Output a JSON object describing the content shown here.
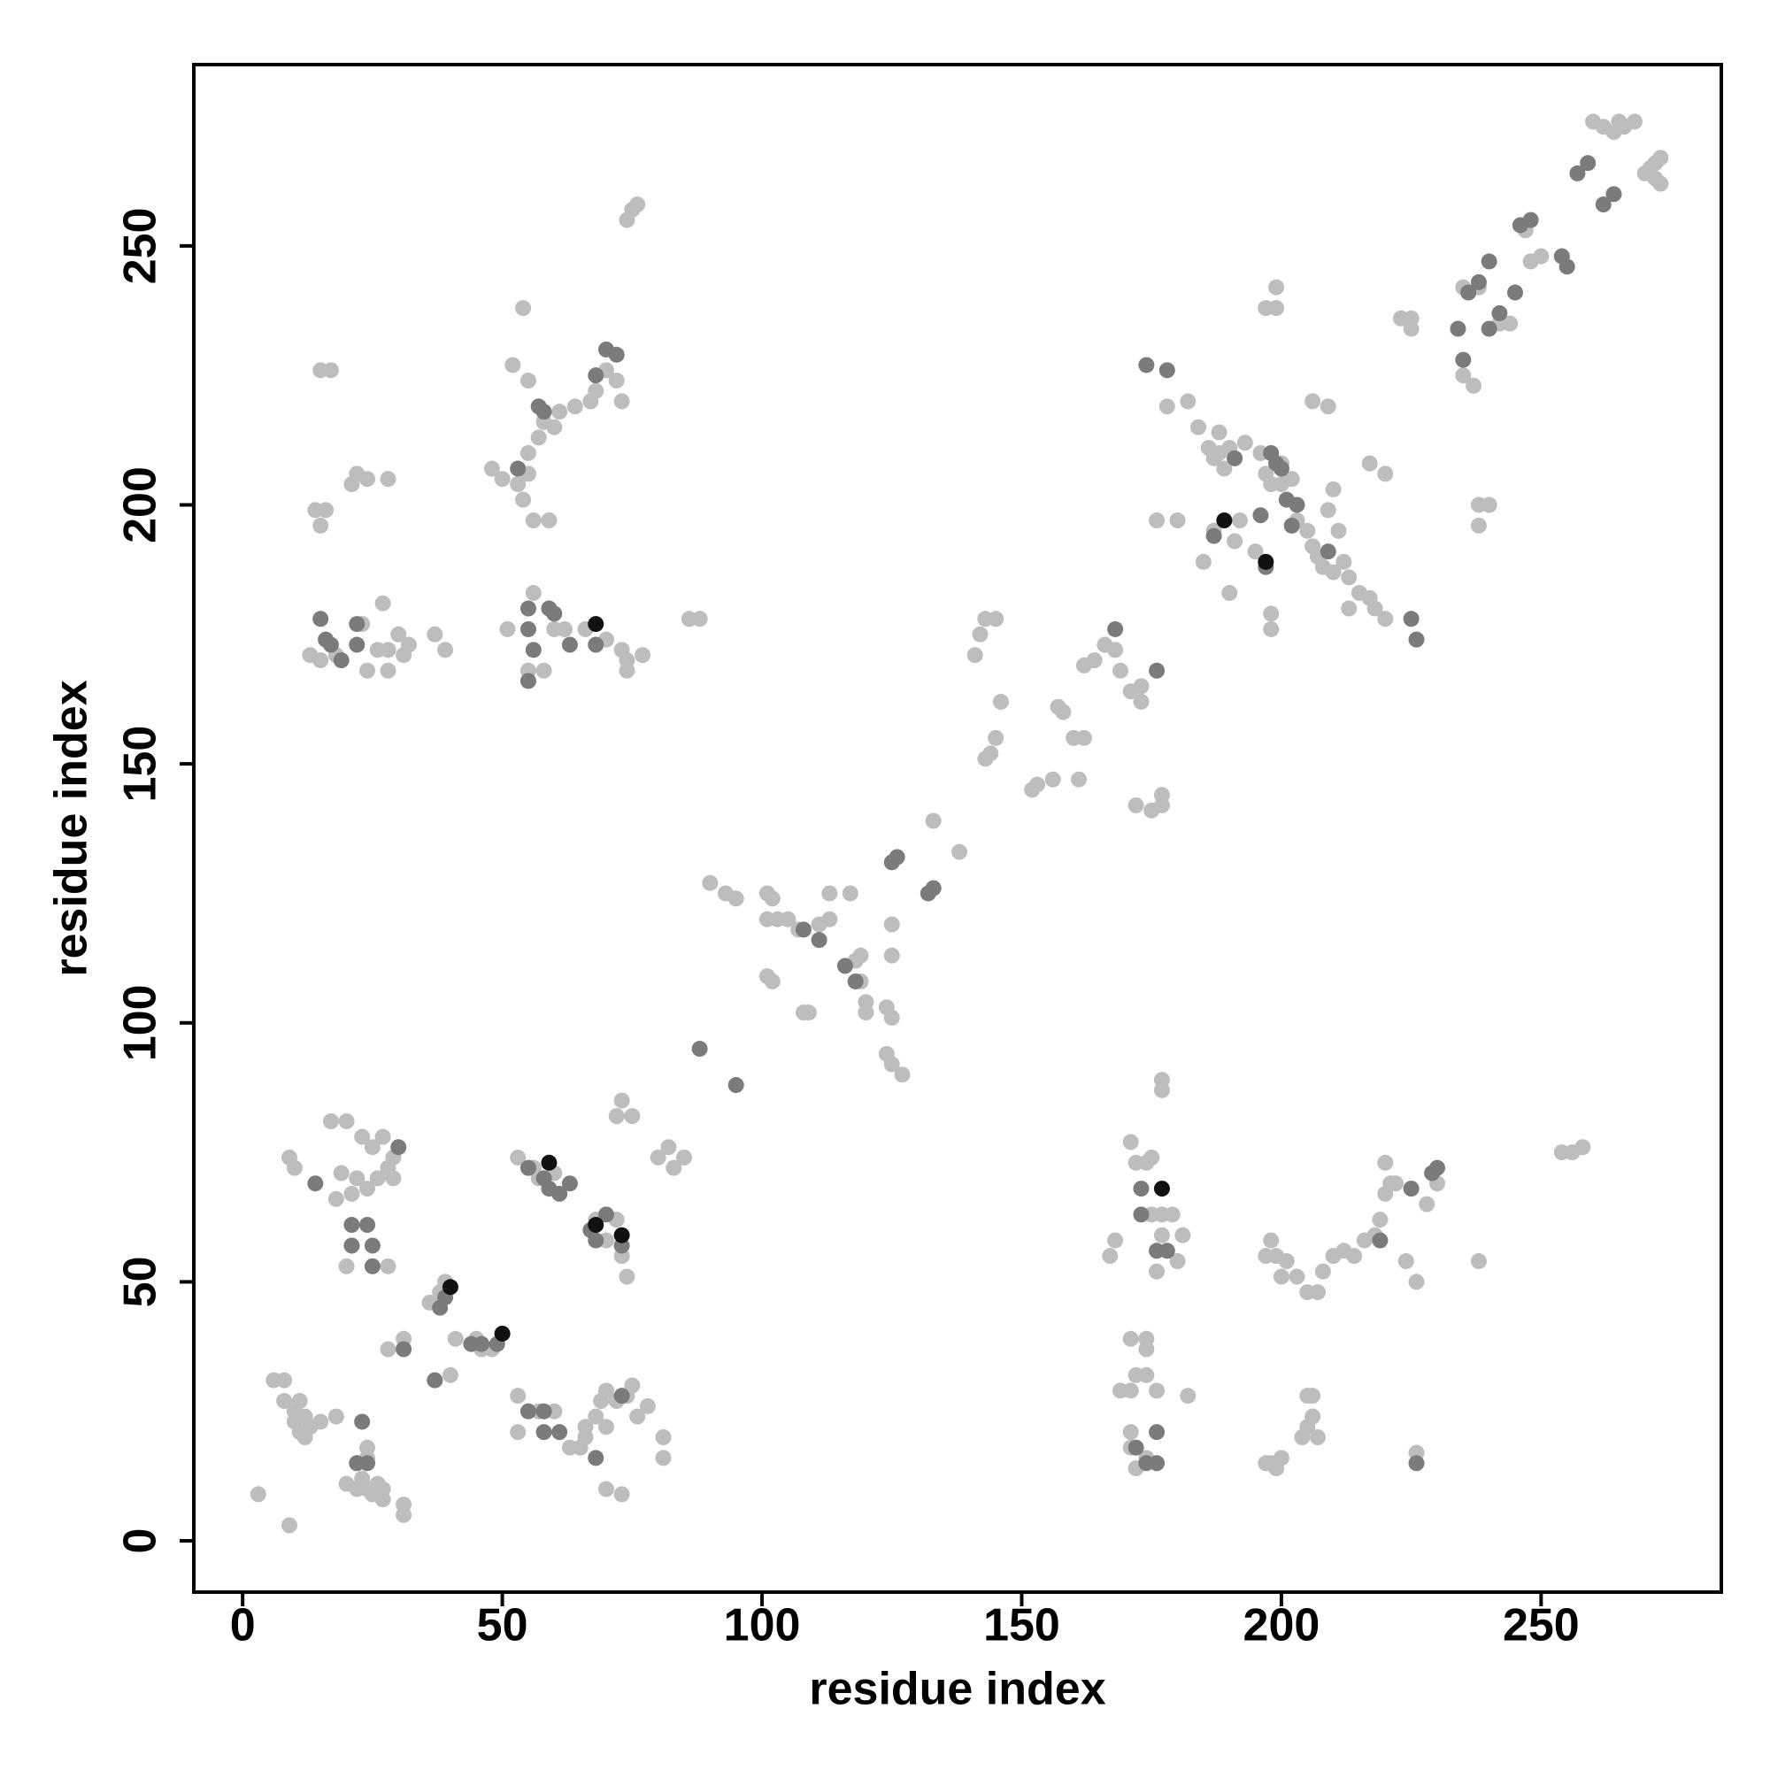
{
  "chart_data": {
    "type": "scatter",
    "xlabel": "residue index",
    "ylabel": "residue index",
    "xlim": [
      -9.4,
      284.7
    ],
    "ylim": [
      -9.9,
      285
    ],
    "xticks": [
      0,
      50,
      100,
      150,
      200,
      250
    ],
    "yticks": [
      0,
      50,
      100,
      150,
      200,
      250
    ],
    "series": [
      {
        "color": "#bdbdbd",
        "x": [
          3,
          9,
          6,
          8,
          8,
          10,
          11,
          10,
          11,
          12,
          13,
          12,
          18,
          15,
          20,
          22,
          23,
          24,
          25,
          26,
          27,
          27,
          31,
          31,
          22,
          24,
          24,
          28,
          31,
          36,
          38,
          39,
          41,
          45,
          46,
          48,
          37,
          40,
          53,
          53,
          57,
          60,
          63,
          65,
          66,
          68,
          69,
          70,
          72,
          74,
          75,
          76,
          78,
          81,
          81,
          70,
          73,
          66,
          70,
          17,
          20,
          23,
          25,
          27,
          28,
          29,
          26,
          24,
          22,
          21,
          18,
          19,
          10,
          9,
          29,
          53,
          56,
          57,
          60,
          68,
          72,
          70,
          73,
          74,
          72,
          73,
          75,
          82,
          83,
          85,
          80,
          20,
          28,
          21,
          15,
          17,
          16,
          14,
          15,
          21,
          22,
          24,
          28,
          13,
          15,
          18,
          24,
          28,
          28,
          30,
          31,
          26,
          32,
          37,
          39,
          23,
          27,
          48,
          50,
          53,
          55,
          54,
          56,
          59,
          55,
          57,
          58,
          60,
          61,
          64,
          52,
          54,
          55,
          51,
          56,
          55,
          58,
          60,
          62,
          66,
          70,
          73,
          74,
          74,
          77,
          86,
          88,
          67,
          68,
          70,
          72,
          73,
          74,
          75,
          76,
          90,
          93,
          95,
          101,
          102,
          101,
          103,
          105,
          107,
          111,
          113,
          113,
          117,
          101,
          102,
          108,
          109,
          118,
          119,
          119,
          120,
          120,
          124,
          125,
          124,
          125,
          127,
          125,
          125,
          133,
          138,
          141,
          142,
          143,
          145,
          146,
          145,
          144,
          143,
          152,
          153,
          156,
          157,
          158,
          160,
          162,
          161,
          162,
          164,
          166,
          168,
          169,
          171,
          173,
          173,
          172,
          175,
          177,
          177,
          174,
          172,
          171,
          175,
          175,
          177,
          177,
          179,
          181,
          180,
          176,
          168,
          167,
          177,
          177,
          171,
          174,
          174,
          169,
          171,
          172,
          174,
          176,
          182,
          171,
          172,
          174,
          171,
          198,
          199,
          200,
          197,
          197,
          198,
          199,
          200,
          201,
          203,
          205,
          207,
          208,
          210,
          212,
          214,
          216,
          218,
          219,
          220,
          221,
          220,
          222,
          225,
          224,
          226,
          230,
          228,
          238,
          254,
          256,
          258,
          204,
          205,
          206,
          206,
          207,
          205,
          226,
          199,
          199,
          197,
          190,
          187,
          191,
          192,
          185,
          186,
          187,
          188,
          190,
          193,
          196,
          197,
          198,
          200,
          200,
          202,
          198,
          198,
          195,
          203,
          205,
          206,
          207,
          208,
          210,
          212,
          213,
          215,
          217,
          218,
          213,
          220,
          206,
          209,
          210,
          217,
          220,
          211,
          209,
          176,
          180,
          178,
          182,
          184,
          188,
          189,
          191,
          238,
          240,
          238,
          223,
          225,
          225,
          235,
          236,
          238,
          242,
          244,
          235,
          237,
          248,
          250,
          246,
          247,
          260,
          262,
          264,
          266,
          268,
          265,
          271,
          272,
          273,
          273,
          272,
          270
        ],
        "values": [
          9,
          3,
          31,
          31,
          27,
          25,
          27,
          23,
          21,
          20,
          22,
          24,
          24,
          23,
          11,
          10,
          12,
          10,
          9,
          11,
          10,
          8,
          7,
          5,
          15,
          16,
          18,
          37,
          39,
          46,
          48,
          50,
          39,
          39,
          37,
          37,
          31,
          32,
          28,
          21,
          25,
          25,
          18,
          18,
          22,
          24,
          27,
          29,
          27,
          28,
          30,
          24,
          26,
          20,
          16,
          10,
          9,
          20,
          22,
          81,
          81,
          78,
          76,
          78,
          72,
          70,
          70,
          68,
          70,
          67,
          66,
          71,
          72,
          74,
          74,
          74,
          72,
          70,
          71,
          62,
          62,
          58,
          55,
          51,
          82,
          85,
          82,
          76,
          72,
          74,
          74,
          53,
          53,
          57,
          226,
          226,
          199,
          199,
          196,
          204,
          206,
          205,
          205,
          171,
          170,
          171,
          168,
          168,
          172,
          175,
          171,
          172,
          173,
          175,
          172,
          177,
          181,
          207,
          205,
          204,
          206,
          201,
          197,
          197,
          210,
          213,
          216,
          215,
          218,
          219,
          227,
          238,
          224,
          176,
          183,
          168,
          168,
          176,
          176,
          176,
          174,
          172,
          170,
          168,
          171,
          178,
          178,
          220,
          222,
          226,
          224,
          220,
          255,
          257,
          258,
          127,
          125,
          124,
          125,
          124,
          120,
          120,
          120,
          118,
          119,
          120,
          125,
          125,
          109,
          108,
          102,
          102,
          112,
          113,
          108,
          104,
          102,
          103,
          101,
          94,
          92,
          90,
          113,
          119,
          139,
          133,
          171,
          175,
          178,
          178,
          162,
          155,
          152,
          151,
          145,
          146,
          147,
          161,
          160,
          155,
          155,
          147,
          169,
          170,
          173,
          172,
          168,
          164,
          165,
          162,
          142,
          141,
          144,
          142,
          73,
          73,
          77,
          74,
          63,
          63,
          59,
          63,
          59,
          54,
          52,
          58,
          55,
          89,
          87,
          39,
          39,
          37,
          29,
          29,
          32,
          32,
          29,
          28,
          18,
          14,
          16,
          21,
          15,
          14,
          16,
          15,
          55,
          58,
          55,
          51,
          54,
          51,
          48,
          48,
          52,
          55,
          56,
          55,
          58,
          59,
          62,
          67,
          69,
          73,
          69,
          68,
          54,
          50,
          69,
          65,
          54,
          75,
          75,
          76,
          20,
          22,
          24,
          28,
          20,
          28,
          17,
          242,
          238,
          238,
          183,
          195,
          193,
          197,
          189,
          211,
          209,
          214,
          211,
          212,
          210,
          206,
          204,
          204,
          208,
          205,
          179,
          176,
          191,
          197,
          195,
          192,
          190,
          188,
          187,
          189,
          186,
          183,
          182,
          180,
          180,
          178,
          220,
          219,
          203,
          208,
          206,
          195,
          199,
          197,
          197,
          219,
          220,
          215,
          210,
          207,
          209,
          200,
          200,
          196,
          236,
          236,
          234,
          242,
          241,
          242,
          235,
          235,
          225,
          223,
          247,
          248,
          254,
          253,
          274,
          273,
          272,
          273,
          274,
          274,
          265,
          263,
          262,
          267,
          266,
          264
        ]
      },
      {
        "color": "#7b7b7b",
        "x": [
          15,
          16,
          17,
          19,
          22,
          22,
          14,
          21,
          24,
          21,
          25,
          25,
          30,
          23,
          24,
          22,
          31,
          37,
          38,
          39,
          44,
          46,
          49,
          55,
          58,
          58,
          61,
          55,
          58,
          59,
          61,
          63,
          67,
          68,
          70,
          73,
          68,
          55,
          55,
          56,
          59,
          60,
          63,
          55,
          53,
          57,
          58,
          68,
          70,
          72,
          68,
          73,
          88,
          95,
          108,
          111,
          116,
          118,
          125,
          126,
          132,
          133,
          168,
          176,
          178,
          174,
          173,
          173,
          178,
          176,
          176,
          176,
          172,
          174,
          187,
          196,
          197,
          200,
          201,
          203,
          202,
          209,
          226,
          225,
          219,
          225,
          229,
          230,
          226,
          234,
          235,
          236,
          238,
          240,
          240,
          242,
          245,
          246,
          248,
          255,
          254,
          257,
          259,
          262,
          264,
          199,
          198,
          191
        ],
        "values": [
          178,
          174,
          173,
          170,
          177,
          173,
          69,
          61,
          61,
          57,
          57,
          53,
          76,
          23,
          15,
          15,
          37,
          31,
          45,
          47,
          38,
          38,
          38,
          25,
          25,
          21,
          21,
          72,
          70,
          68,
          67,
          69,
          60,
          58,
          63,
          57,
          16,
          180,
          176,
          172,
          180,
          179,
          173,
          166,
          207,
          219,
          218,
          173,
          230,
          229,
          225,
          28,
          95,
          88,
          118,
          116,
          111,
          108,
          131,
          132,
          125,
          126,
          176,
          168,
          226,
          227,
          63,
          68,
          56,
          56,
          21,
          15,
          18,
          15,
          194,
          198,
          188,
          207,
          201,
          200,
          196,
          191,
          174,
          178,
          58,
          68,
          71,
          72,
          15,
          234,
          228,
          241,
          243,
          234,
          247,
          237,
          241,
          254,
          255,
          246,
          248,
          264,
          266,
          258,
          260,
          208,
          210,
          209
        ]
      },
      {
        "color": "#111111",
        "x": [
          68,
          59,
          68,
          73,
          40,
          50,
          177,
          189,
          197
        ],
        "values": [
          177,
          73,
          61,
          59,
          49,
          40,
          68,
          197,
          189
        ]
      }
    ]
  }
}
